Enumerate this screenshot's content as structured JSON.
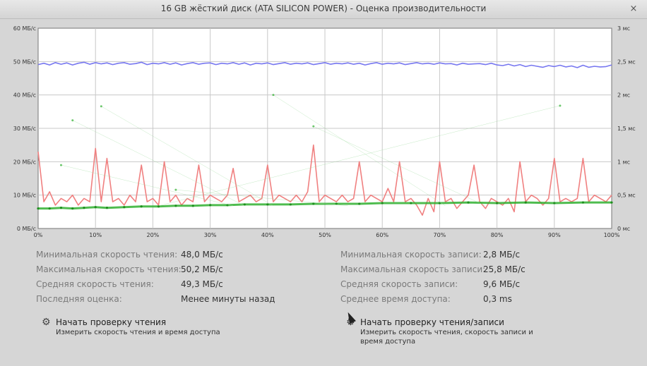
{
  "window": {
    "title": "16 GB жёсткий диск (ATA SILICON POWER) - Оценка производительности",
    "close_symbol": "×"
  },
  "chart_data": {
    "type": "line",
    "x_unit": "%",
    "x_range": [
      0,
      100
    ],
    "y_left_range": [
      0,
      60
    ],
    "y_right_range": [
      0,
      3
    ],
    "x_ticks": [
      "0%",
      "10%",
      "20%",
      "30%",
      "40%",
      "50%",
      "60%",
      "70%",
      "80%",
      "90%",
      "100%"
    ],
    "y_left_ticks": [
      "0 МБ/с",
      "10 МБ/с",
      "20 МБ/с",
      "30 МБ/с",
      "40 МБ/с",
      "50 МБ/с",
      "60 МБ/с"
    ],
    "y_right_ticks": [
      "0 мс",
      "0,5 мс",
      "1 мс",
      "1,5 мс",
      "2 мс",
      "2,5 мс",
      "3 мс"
    ],
    "grid": true,
    "colors": {
      "read": "#7777f0",
      "write": "#f08080",
      "access": "#30b030"
    },
    "series": [
      {
        "kind": "read",
        "x": [
          0,
          1,
          2,
          3,
          4,
          5,
          6,
          7,
          8,
          9,
          10,
          11,
          12,
          13,
          14,
          15,
          16,
          17,
          18,
          19,
          20,
          21,
          22,
          23,
          24,
          25,
          26,
          27,
          28,
          29,
          30,
          31,
          32,
          33,
          34,
          35,
          36,
          37,
          38,
          39,
          40,
          41,
          42,
          43,
          44,
          45,
          46,
          47,
          48,
          49,
          50,
          51,
          52,
          53,
          54,
          55,
          56,
          57,
          58,
          59,
          60,
          61,
          62,
          63,
          64,
          65,
          66,
          67,
          68,
          69,
          70,
          71,
          72,
          73,
          74,
          75,
          76,
          77,
          78,
          79,
          80,
          81,
          82,
          83,
          84,
          85,
          86,
          87,
          88,
          89,
          90,
          91,
          92,
          93,
          94,
          95,
          96,
          97,
          98,
          99,
          100
        ],
        "y": [
          49.1,
          49.5,
          49.0,
          49.7,
          49.2,
          49.6,
          49.0,
          49.5,
          49.8,
          49.2,
          49.7,
          49.3,
          49.6,
          49.1,
          49.5,
          49.7,
          49.2,
          49.4,
          49.8,
          49.1,
          49.5,
          49.3,
          49.7,
          49.2,
          49.6,
          49.0,
          49.4,
          49.7,
          49.2,
          49.5,
          49.6,
          49.1,
          49.5,
          49.3,
          49.7,
          49.2,
          49.6,
          49.0,
          49.5,
          49.3,
          49.6,
          49.1,
          49.4,
          49.7,
          49.2,
          49.5,
          49.3,
          49.6,
          49.1,
          49.4,
          49.7,
          49.2,
          49.5,
          49.3,
          49.6,
          49.2,
          49.5,
          49.0,
          49.4,
          49.7,
          49.2,
          49.5,
          49.3,
          49.6,
          49.1,
          49.4,
          49.7,
          49.3,
          49.5,
          49.2,
          49.6,
          49.3,
          49.4,
          49.0,
          49.5,
          49.2,
          49.3,
          49.4,
          49.1,
          49.5,
          49.0,
          48.8,
          49.2,
          48.7,
          49.1,
          48.5,
          48.9,
          48.6,
          48.3,
          48.8,
          48.5,
          48.9,
          48.4,
          48.7,
          48.2,
          48.9,
          48.3,
          48.6,
          48.4,
          48.5,
          49.0
        ]
      },
      {
        "kind": "write",
        "x": [
          0,
          1,
          2,
          3,
          4,
          5,
          6,
          7,
          8,
          9,
          10,
          11,
          12,
          13,
          14,
          15,
          16,
          17,
          18,
          19,
          20,
          21,
          22,
          23,
          24,
          25,
          26,
          27,
          28,
          29,
          30,
          31,
          32,
          33,
          34,
          35,
          36,
          37,
          38,
          39,
          40,
          41,
          42,
          43,
          44,
          45,
          46,
          47,
          48,
          49,
          50,
          51,
          52,
          53,
          54,
          55,
          56,
          57,
          58,
          59,
          60,
          61,
          62,
          63,
          64,
          65,
          66,
          67,
          68,
          69,
          70,
          71,
          72,
          73,
          74,
          75,
          76,
          77,
          78,
          79,
          80,
          81,
          82,
          83,
          84,
          85,
          86,
          87,
          88,
          89,
          90,
          91,
          92,
          93,
          94,
          95,
          96,
          97,
          98,
          99,
          100
        ],
        "y": [
          23,
          8,
          11,
          7,
          9,
          8,
          10,
          7,
          9,
          8,
          24,
          8,
          21,
          8,
          9,
          7,
          10,
          8,
          19,
          8,
          9,
          7,
          20,
          8,
          10,
          7,
          9,
          8,
          19,
          8,
          10,
          9,
          8,
          10,
          18,
          8,
          9,
          10,
          8,
          9,
          19,
          8,
          10,
          9,
          8,
          10,
          8,
          11,
          25,
          8,
          10,
          9,
          8,
          10,
          8,
          9,
          20,
          8,
          10,
          9,
          8,
          12,
          8,
          20,
          8,
          9,
          7,
          4,
          9,
          5,
          20,
          8,
          9,
          6,
          8,
          10,
          19,
          8,
          6,
          9,
          8,
          7,
          9,
          5,
          20,
          8,
          10,
          9,
          7,
          9,
          21,
          8,
          9,
          8,
          9,
          21,
          8,
          10,
          9,
          8,
          10
        ]
      },
      {
        "kind": "access",
        "x": [
          0,
          2,
          4,
          6,
          8,
          10,
          12,
          15,
          18,
          21,
          24,
          27,
          30,
          33,
          36,
          40,
          44,
          48,
          52,
          56,
          60,
          65,
          70,
          75,
          80,
          85,
          90,
          95,
          100
        ],
        "y": [
          0.3,
          0.3,
          0.31,
          0.3,
          0.31,
          0.32,
          0.31,
          0.32,
          0.33,
          0.33,
          0.34,
          0.34,
          0.35,
          0.35,
          0.36,
          0.36,
          0.36,
          0.37,
          0.37,
          0.37,
          0.38,
          0.38,
          0.38,
          0.39,
          0.38,
          0.39,
          0.38,
          0.39,
          0.39
        ]
      },
      {
        "kind": "access-outliers",
        "x": [
          4,
          6,
          11,
          24,
          41,
          48,
          91
        ],
        "y": [
          0.95,
          1.62,
          1.83,
          0.58,
          2.0,
          1.53,
          1.84
        ]
      }
    ]
  },
  "stats": {
    "left": [
      {
        "label": "Минимальная скорость чтения:",
        "value": "48,0 МБ/с"
      },
      {
        "label": "Максимальная скорость чтения:",
        "value": "50,2 МБ/с"
      },
      {
        "label": "Средняя скорость чтения:",
        "value": "49,3 МБ/с"
      },
      {
        "label": "Последняя оценка:",
        "value": "Менее минуты назад"
      }
    ],
    "right": [
      {
        "label": "Минимальная скорость записи:",
        "value": "2,8 МБ/с"
      },
      {
        "label": "Максимальная скорость записи:",
        "value": "25,8 МБ/с"
      },
      {
        "label": "Средняя скорость записи:",
        "value": "9,6 МБ/с"
      },
      {
        "label": "Среднее время доступа:",
        "value": "0,3 ms"
      }
    ]
  },
  "actions": {
    "read": {
      "title": "Начать проверку чтения",
      "desc": "Измерить скорость чтения и время доступа",
      "icon": "gear-icon"
    },
    "readwrite": {
      "title": "Начать проверку чтения/записи",
      "desc_line1": "Измерить скорость чтения, скорость записи и",
      "desc_line2": "время доступа",
      "icon": "gear-icon"
    }
  }
}
